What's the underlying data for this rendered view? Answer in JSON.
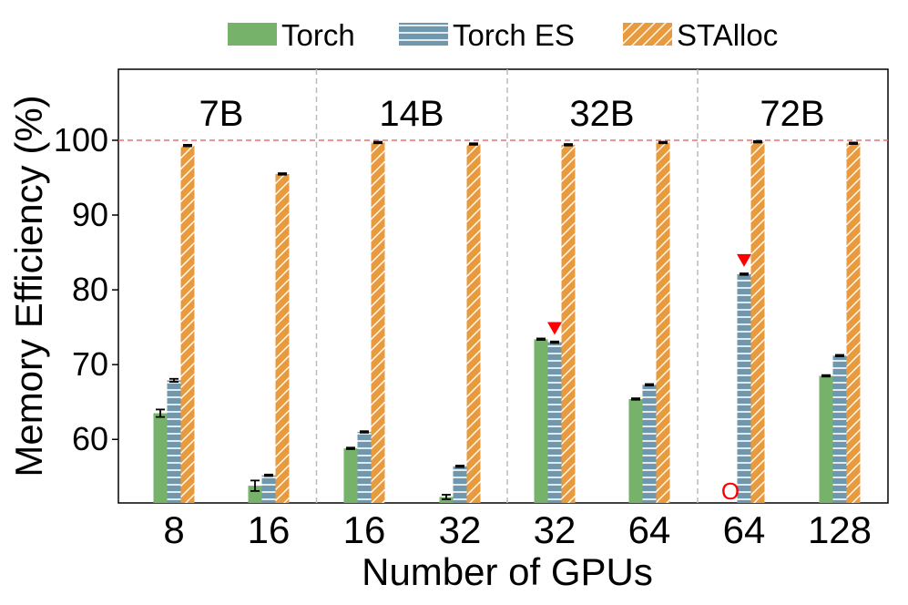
{
  "chart_data": {
    "type": "bar",
    "title": "",
    "xlabel": "Number of GPUs",
    "ylabel": "Memory Efficiency (%)",
    "ylim": [
      51.5,
      109.5
    ],
    "yticks": [
      60,
      70,
      80,
      90,
      100
    ],
    "reference_line": 100,
    "legend_position": "top-center",
    "groups": [
      {
        "label": "7B",
        "categories": [
          "8",
          "16"
        ]
      },
      {
        "label": "14B",
        "categories": [
          "16",
          "32"
        ]
      },
      {
        "label": "32B",
        "categories": [
          "32",
          "64"
        ]
      },
      {
        "label": "72B",
        "categories": [
          "64",
          "128"
        ]
      }
    ],
    "categories": [
      "8",
      "16",
      "16",
      "32",
      "32",
      "64",
      "64",
      "128"
    ],
    "series": [
      {
        "name": "Torch",
        "color": "#77b26a",
        "pattern": "solid",
        "values": [
          63.5,
          53.8,
          58.8,
          52.3,
          73.4,
          65.4,
          null,
          68.5
        ],
        "errors": [
          0.5,
          0.7,
          0.1,
          0.3,
          0.1,
          0.1,
          0,
          0.1
        ]
      },
      {
        "name": "Torch ES",
        "color": "#6f97ad",
        "pattern": "horizontal-lines",
        "values": [
          67.9,
          55.2,
          61.0,
          56.4,
          73.0,
          67.3,
          82.1,
          71.2
        ],
        "errors": [
          0.2,
          0.1,
          0.1,
          0.1,
          0.1,
          0.1,
          0.1,
          0.1
        ]
      },
      {
        "name": "STAlloc",
        "color": "#e89a3c",
        "pattern": "diagonal-lines",
        "values": [
          99.3,
          95.5,
          99.7,
          99.5,
          99.4,
          99.7,
          99.8,
          99.6
        ],
        "errors": [
          0.1,
          0.1,
          0.1,
          0.1,
          0.1,
          0.1,
          0.1,
          0.1
        ]
      }
    ],
    "annotations": [
      {
        "type": "triangle-marker",
        "category_index": 4,
        "series": "Torch ES",
        "color": "#ff0000"
      },
      {
        "type": "triangle-marker",
        "category_index": 6,
        "series": "Torch ES",
        "color": "#ff0000"
      },
      {
        "type": "text",
        "text": "O",
        "category_index": 6,
        "series": "Torch",
        "color": "#ff0000"
      }
    ]
  }
}
